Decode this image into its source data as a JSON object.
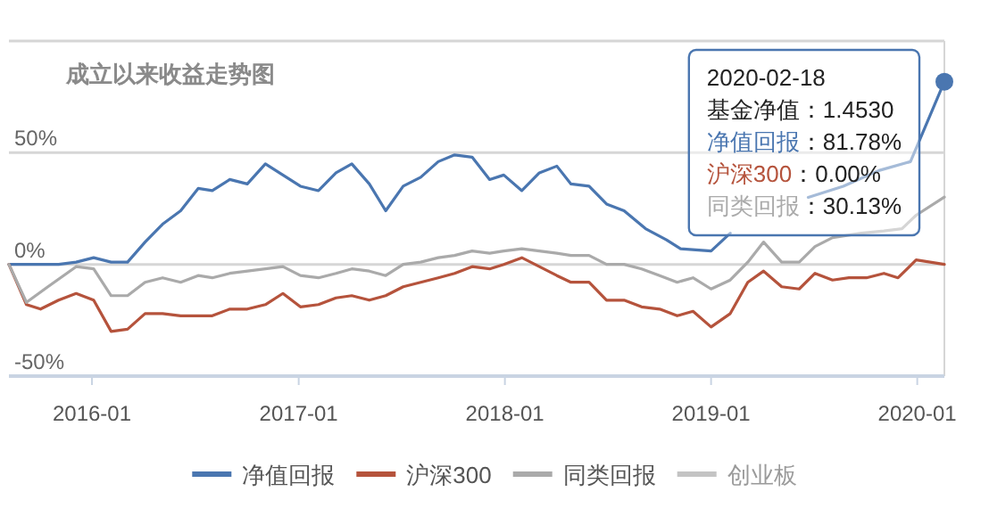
{
  "chart_data": {
    "type": "line",
    "title": "成立以来收益走势图",
    "xlim": [
      "2015-08-07",
      "2020-02-18"
    ],
    "xticks": [
      {
        "value": "2016-01-01",
        "label": "2016-01"
      },
      {
        "value": "2017-01-01",
        "label": "2017-01"
      },
      {
        "value": "2018-01-01",
        "label": "2018-01"
      },
      {
        "value": "2019-01-01",
        "label": "2019-01"
      },
      {
        "value": "2020-01-01",
        "label": "2020-01"
      }
    ],
    "ylim": [
      -50,
      100
    ],
    "yticks": [
      {
        "value": -50,
        "label": "-50%"
      },
      {
        "value": 0,
        "label": "0%"
      },
      {
        "value": 50,
        "label": "50%"
      },
      {
        "value": 100,
        "label": null
      }
    ],
    "grid": "y",
    "legend": "bottom",
    "line_style": "solid",
    "series": [
      {
        "name": "净值回报",
        "color": "#4a76b0",
        "x": [
          "2015-08-07",
          "2015-11-03",
          "2015-12-04",
          "2016-01-04",
          "2016-02-04",
          "2016-03-04",
          "2016-04-04",
          "2016-05-05",
          "2016-06-06",
          "2016-07-07",
          "2016-08-01",
          "2016-09-01",
          "2016-10-02",
          "2016-11-03",
          "2016-12-04",
          "2017-01-04",
          "2017-02-05",
          "2017-03-08",
          "2017-04-05",
          "2017-05-06",
          "2017-06-04",
          "2017-07-05",
          "2017-08-05",
          "2017-09-05",
          "2017-10-04",
          "2017-11-04",
          "2017-12-05",
          "2017-12-30",
          "2018-01-31",
          "2018-03-03",
          "2018-04-03",
          "2018-04-28",
          "2018-05-30",
          "2018-06-30",
          "2018-07-31",
          "2018-09-07",
          "2018-10-14",
          "2018-11-08",
          "2019-01-01",
          "2019-02-04",
          "2019-03-20",
          "2019-05-06",
          "2019-06-22",
          "2019-08-23",
          "2019-10-25",
          "2019-12-20",
          "2020-02-18"
        ],
        "values": [
          0,
          0,
          1,
          3,
          1,
          1,
          10,
          18,
          24,
          34,
          33,
          38,
          36,
          45,
          40,
          35,
          33,
          41,
          45,
          36,
          24,
          35,
          39,
          46,
          49,
          48,
          38,
          40,
          33,
          41,
          44,
          36,
          35,
          27,
          24,
          16,
          11,
          7,
          6,
          14,
          null,
          null,
          30,
          35,
          42,
          46,
          81.78
        ]
      },
      {
        "name": "沪深300",
        "color": "#b5533c",
        "x": [
          "2015-08-07",
          "2015-09-07",
          "2015-10-02",
          "2015-11-03",
          "2015-12-04",
          "2016-01-04",
          "2016-02-04",
          "2016-03-04",
          "2016-04-04",
          "2016-05-05",
          "2016-06-06",
          "2016-07-07",
          "2016-08-01",
          "2016-09-01",
          "2016-10-02",
          "2016-11-03",
          "2016-12-04",
          "2017-01-04",
          "2017-02-05",
          "2017-03-08",
          "2017-04-05",
          "2017-05-06",
          "2017-06-04",
          "2017-07-05",
          "2017-08-05",
          "2017-09-05",
          "2017-10-04",
          "2017-11-04",
          "2017-12-05",
          "2017-12-30",
          "2018-01-31",
          "2018-03-03",
          "2018-04-03",
          "2018-04-28",
          "2018-05-30",
          "2018-06-30",
          "2018-07-31",
          "2018-08-31",
          "2018-10-02",
          "2018-11-02",
          "2018-11-30",
          "2019-01-01",
          "2019-02-04",
          "2019-03-07",
          "2019-04-04",
          "2019-05-06",
          "2019-06-06",
          "2019-07-04",
          "2019-08-04",
          "2019-09-02",
          "2019-10-03",
          "2019-11-03",
          "2019-11-28",
          "2019-12-30",
          "2020-02-18"
        ],
        "values": [
          0,
          -18,
          -20,
          -16,
          -13,
          -16,
          -30,
          -29,
          -22,
          -22,
          -23,
          -23,
          -23,
          -20,
          -20,
          -18,
          -13,
          -19,
          -18,
          -15,
          -14,
          -16,
          -14,
          -10,
          -8,
          -6,
          -4,
          -1,
          -2,
          0,
          3,
          -1,
          -5,
          -8,
          -8,
          -16,
          -16,
          -19,
          -20,
          -23,
          -21,
          -28,
          -22,
          -8,
          -3,
          -10,
          -11,
          -4,
          -7,
          -6,
          -6,
          -4,
          -6,
          2,
          0.0
        ]
      },
      {
        "name": "同类回报",
        "color": "#aaaaaa",
        "x": [
          "2015-08-07",
          "2015-09-07",
          "2015-10-15",
          "2015-12-04",
          "2016-01-04",
          "2016-02-04",
          "2016-03-04",
          "2016-04-04",
          "2016-05-05",
          "2016-06-06",
          "2016-07-07",
          "2016-08-01",
          "2016-09-01",
          "2016-11-03",
          "2016-12-04",
          "2017-01-04",
          "2017-02-05",
          "2017-03-08",
          "2017-04-05",
          "2017-05-06",
          "2017-06-04",
          "2017-07-05",
          "2017-08-05",
          "2017-09-05",
          "2017-10-04",
          "2017-11-04",
          "2017-12-05",
          "2017-12-30",
          "2018-01-31",
          "2018-03-03",
          "2018-04-03",
          "2018-04-28",
          "2018-05-30",
          "2018-06-30",
          "2018-07-31",
          "2018-08-31",
          "2018-10-02",
          "2018-11-02",
          "2018-11-30",
          "2019-01-01",
          "2019-02-04",
          "2019-03-07",
          "2019-04-04",
          "2019-05-06",
          "2019-06-06",
          "2019-07-04",
          "2019-08-04",
          "2019-09-24",
          "2019-11-03",
          "2019-12-05",
          "2019-12-30",
          "2020-02-18"
        ],
        "values": [
          0,
          -17,
          -10,
          -1,
          -2,
          -14,
          -14,
          -8,
          -6,
          -8,
          -5,
          -6,
          -4,
          -2,
          -1,
          -5,
          -6,
          -4,
          -2,
          -3,
          -5,
          0,
          1,
          3,
          4,
          6,
          5,
          6,
          7,
          6,
          5,
          4,
          4,
          0,
          0,
          -2,
          -5,
          -8,
          -6,
          -11,
          -7,
          1,
          10,
          1,
          1,
          8,
          12,
          14,
          15,
          16,
          22,
          30.13
        ]
      },
      {
        "name": "创业板",
        "color": "#c4c4c4"
      }
    ],
    "annotations": [
      {
        "text": "2020-02-18\n基金净值：1.4530\n净值回报：81.78%\n沪深300：0.00%\n同类回报：30.13%",
        "x": "2020-02-18",
        "y": 81.78
      }
    ]
  }
}
